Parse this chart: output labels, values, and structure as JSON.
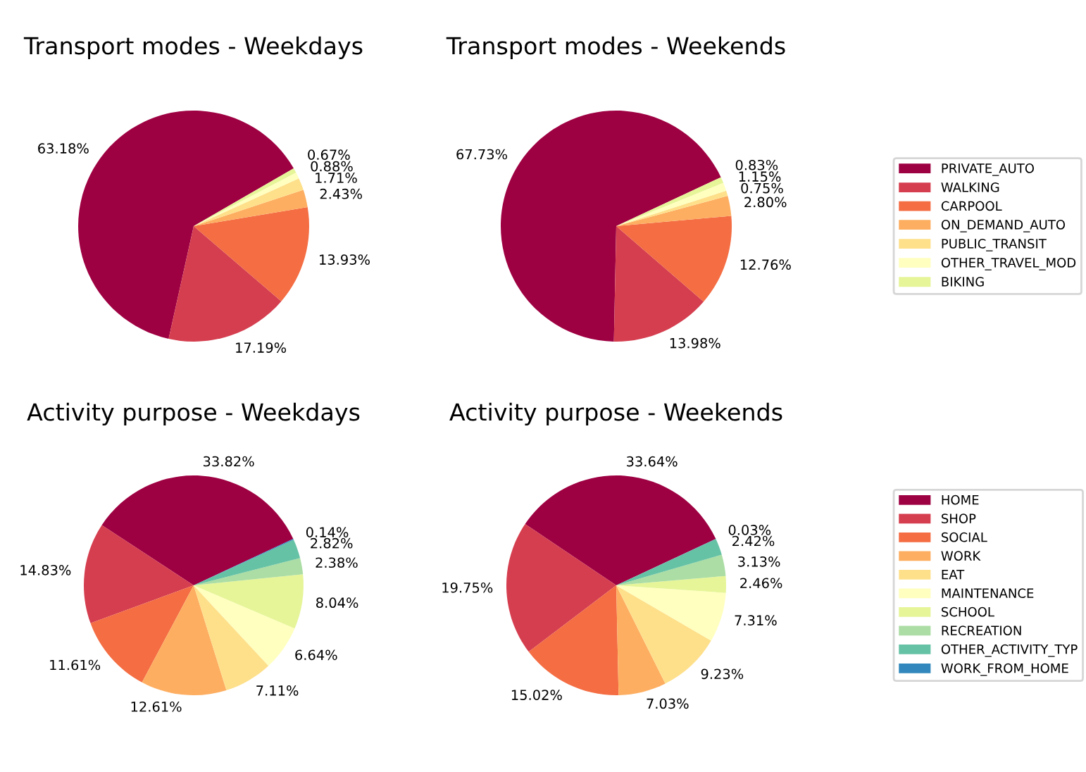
{
  "chart_data": [
    {
      "type": "pie",
      "title": "Transport modes - Weekdays",
      "categories": [
        "PRIVATE_AUTO",
        "WALKING",
        "CARPOOL",
        "ON_DEMAND_AUTO",
        "PUBLIC_TRANSIT",
        "OTHER_TRAVEL_MOD",
        "BIKING"
      ],
      "values": [
        63.18,
        17.19,
        13.93,
        2.43,
        1.71,
        0.88,
        0.67
      ],
      "value_labels": [
        "63.18%",
        "17.19%",
        "13.93%",
        "2.43%",
        "1.71%",
        "0.88%",
        "0.67%"
      ],
      "colors": [
        "#9e0142",
        "#d53e4f",
        "#f46d43",
        "#fdae61",
        "#fee08b",
        "#ffffbf",
        "#e6f598"
      ],
      "legend": "right"
    },
    {
      "type": "pie",
      "title": "Transport modes - Weekends",
      "categories": [
        null,
        null,
        null,
        null,
        null,
        null,
        null
      ],
      "values": [
        67.73,
        13.98,
        12.76,
        2.8,
        0.75,
        1.15,
        0.83
      ],
      "value_labels": [
        "67.73%",
        "13.98%",
        "12.76%",
        "2.80%",
        "0.75%",
        "1.15%",
        "0.83%"
      ],
      "colors": [
        "#9e0142",
        "#d53e4f",
        "#f46d43",
        "#fdae61",
        "#fee08b",
        "#ffffbf",
        "#e6f598"
      ]
    },
    {
      "type": "pie",
      "title": "Activity purpose - Weekdays",
      "categories": [
        "HOME",
        "SHOP",
        "SOCIAL",
        "WORK",
        "EAT",
        "MAINTENANCE",
        "SCHOOL",
        "RECREATION",
        "OTHER_ACTIVITY_TYP",
        "WORK_FROM_HOME"
      ],
      "values": [
        33.82,
        14.83,
        11.61,
        12.61,
        7.11,
        6.64,
        8.04,
        2.38,
        2.82,
        0.14
      ],
      "value_labels": [
        "33.82%",
        "14.83%",
        "11.61%",
        "12.61%",
        "7.11%",
        "6.64%",
        "8.04%",
        "2.38%",
        "2.82%",
        "0.14%"
      ],
      "colors": [
        "#9e0142",
        "#d53e4f",
        "#f46d43",
        "#fdae61",
        "#fee08b",
        "#ffffbf",
        "#e6f598",
        "#abdda4",
        "#66c2a5",
        "#3288bd"
      ],
      "legend": "right"
    },
    {
      "type": "pie",
      "title": "Activity purpose - Weekends",
      "categories": [
        null,
        null,
        null,
        null,
        null,
        null,
        null,
        null,
        null,
        null
      ],
      "values": [
        33.64,
        19.75,
        15.02,
        7.03,
        9.23,
        7.31,
        2.46,
        3.13,
        2.42,
        0.03
      ],
      "value_labels": [
        "33.64%",
        "19.75%",
        "15.02%",
        "7.03%",
        "9.23%",
        "7.31%",
        "2.46%",
        "3.13%",
        "2.42%",
        "0.03%"
      ],
      "colors": [
        "#9e0142",
        "#d53e4f",
        "#f46d43",
        "#fdae61",
        "#fee08b",
        "#ffffbf",
        "#e6f598",
        "#abdda4",
        "#66c2a5",
        "#3288bd"
      ]
    }
  ]
}
